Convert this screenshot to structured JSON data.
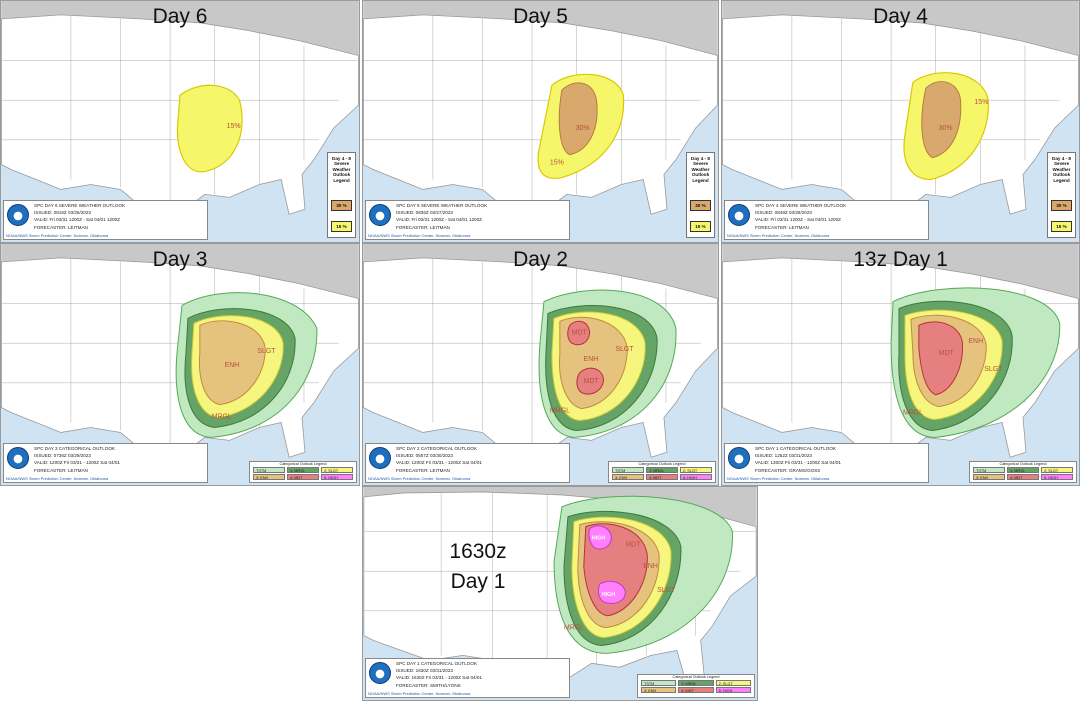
{
  "panels": [
    {
      "id": "day6",
      "title": "Day 6",
      "type": "d48",
      "info": {
        "line1": "SPC DAY 6 SEVERE WEATHER OUTLOOK",
        "line2": "ISSUED: 0816Z 03/26/2023",
        "line3": "VALID: Fri 03/31 1200Z - Sat 04/01 1200Z",
        "line4": "FORECASTER: LEITMAN"
      },
      "area_labels": [
        "15%"
      ]
    },
    {
      "id": "day5",
      "title": "Day 5",
      "type": "d48",
      "info": {
        "line1": "SPC DAY 5 SEVERE WEATHER OUTLOOK",
        "line2": "ISSUED: 0836Z 03/27/2023",
        "line3": "VALID: Fri 03/31 1200Z - Sat 04/01 1200Z",
        "line4": "FORECASTER: LEITMAN"
      },
      "area_labels": [
        "30%",
        "15%"
      ]
    },
    {
      "id": "day4",
      "title": "Day 4",
      "type": "d48",
      "info": {
        "line1": "SPC DAY 4 SEVERE WEATHER OUTLOOK",
        "line2": "ISSUED: 0849Z 03/28/2023",
        "line3": "VALID: Fri 03/31 1200Z - Sat 04/01 1200Z",
        "line4": "FORECASTER: LEITMAN"
      },
      "area_labels": [
        "30%",
        "15%"
      ]
    },
    {
      "id": "day3",
      "title": "Day 3",
      "type": "cat",
      "info": {
        "line1": "SPC DAY 3 CATEGORICAL OUTLOOK",
        "line2": "ISSUED: 0736Z 03/29/2023",
        "line3": "VALID: 1200Z Fri 03/31 - 1200Z Sat 04/01",
        "line4": "FORECASTER: LEITMAN"
      },
      "area_labels": [
        "ENH",
        "SLGT",
        "MRGL"
      ]
    },
    {
      "id": "day2",
      "title": "Day 2",
      "type": "cat",
      "info": {
        "line1": "SPC DAY 2 CATEGORICAL OUTLOOK",
        "line2": "ISSUED: 0557Z 03/30/2023",
        "line3": "VALID: 1200Z Fri 03/31 - 1200Z Sat 04/01",
        "line4": "FORECASTER: LEITMAN"
      },
      "area_labels": [
        "MDT",
        "MDT",
        "ENH",
        "SLGT",
        "MRGL"
      ]
    },
    {
      "id": "day1-13z",
      "title": "13z Day 1",
      "type": "cat",
      "info": {
        "line1": "SPC DAY 1 CATEGORICAL OUTLOOK",
        "line2": "ISSUED: 1252Z 03/31/2023",
        "line3": "VALID: 1300Z Fri 03/31 - 1200Z Sat 04/01",
        "line4": "FORECASTER: GRAMS/GOSS"
      },
      "area_labels": [
        "MDT",
        "ENH",
        "SLGT",
        "MRGL"
      ]
    },
    {
      "id": "day1-1630z",
      "title": "1630z Day 1",
      "type": "cat",
      "title_line1": "1630z",
      "title_line2": "Day 1",
      "info": {
        "line1": "SPC DAY 1 CATEGORICAL OUTLOOK",
        "line2": "ISSUED: 1630Z 03/31/2023",
        "line3": "VALID: 1630Z Fri 03/31 - 1200Z Sat 04/01",
        "line4": "FORECASTER: SMITH/LYONS"
      },
      "area_labels": [
        "HIGH",
        "MDT",
        "HIGH",
        "ENH",
        "SLGT",
        "MRGL"
      ]
    }
  ],
  "legend_d48": {
    "title": "Day 4 - 8 Severe Weather Outlook Legend",
    "items": [
      {
        "label": "30 %",
        "color": "#d9a86c"
      },
      {
        "label": "15 %",
        "color": "#f6f66b"
      }
    ]
  },
  "legend_cat": {
    "title": "Categorical Outlook Legend",
    "items": [
      {
        "label": "TSTM",
        "color": "#c1e9c1"
      },
      {
        "label": "1: MRGL",
        "color": "#66a366"
      },
      {
        "label": "2: SLGT",
        "color": "#f6f67f"
      },
      {
        "label": "3: ENH",
        "color": "#e6c27f"
      },
      {
        "label": "4: MDT",
        "color": "#e67f7f"
      },
      {
        "label": "5: HIGH",
        "color": "#ff7fff"
      }
    ]
  },
  "credit": "NOAA/NWS Storm Prediction Center, Norman, Oklahoma",
  "colors": {
    "ocean": "#cfe3f3",
    "land": "#ffffff",
    "foreign": "#c8c8c8"
  }
}
